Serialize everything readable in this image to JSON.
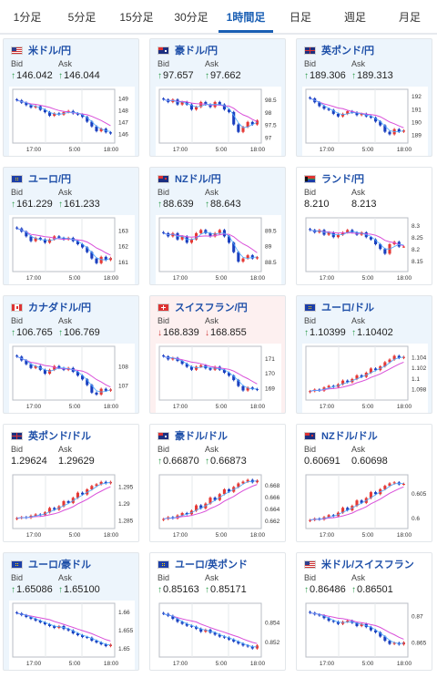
{
  "tabs": [
    {
      "label": "1分足",
      "active": false
    },
    {
      "label": "5分足",
      "active": false
    },
    {
      "label": "15分足",
      "active": false
    },
    {
      "label": "30分足",
      "active": false
    },
    {
      "label": "1時間足",
      "active": true
    },
    {
      "label": "日足",
      "active": false
    },
    {
      "label": "週足",
      "active": false
    },
    {
      "label": "月足",
      "active": false
    }
  ],
  "labels": {
    "bid": "Bid",
    "ask": "Ask"
  },
  "x_ticks": [
    "17:00",
    "5:00",
    "18:00"
  ],
  "colors": {
    "up": "#2b9c4a",
    "down": "#d03a3a",
    "candle_up": "#e53935",
    "candle_down": "#1a3fbf",
    "ma_long": "#d94fd9",
    "ma_short": "#4aa8ff"
  },
  "cards": [
    {
      "pair": "米ドル/円",
      "flag": "us",
      "bid": "146.042",
      "ask": "146.044",
      "dir": "up",
      "tint": "blue",
      "ticks": [
        "149",
        "148",
        "147",
        "146"
      ],
      "chart_data": {
        "type": "candlestick",
        "ylim": [
          145.5,
          149.5
        ],
        "trend": "down",
        "closes": [
          148.8,
          148.6,
          148.4,
          148.2,
          148.3,
          148.0,
          147.8,
          147.5,
          147.7,
          147.6,
          147.8,
          147.9,
          147.7,
          147.6,
          147.4,
          147.0,
          146.6,
          146.2,
          146.4,
          146.1,
          146.0
        ]
      }
    },
    {
      "pair": "豪ドル/円",
      "flag": "au",
      "bid": "97.657",
      "ask": "97.662",
      "dir": "up",
      "tint": "blue",
      "ticks": [
        "98.5",
        "98",
        "97.5",
        "97"
      ],
      "chart_data": {
        "type": "candlestick",
        "ylim": [
          96.9,
          98.8
        ],
        "trend": "down",
        "closes": [
          98.5,
          98.4,
          98.5,
          98.3,
          98.4,
          98.3,
          98.1,
          98.2,
          98.4,
          98.3,
          98.2,
          98.4,
          98.3,
          98.1,
          98.0,
          97.5,
          97.2,
          97.4,
          97.6,
          97.5,
          97.66
        ]
      }
    },
    {
      "pair": "英ポンド/円",
      "flag": "gb",
      "bid": "189.306",
      "ask": "189.313",
      "dir": "up",
      "tint": "blue",
      "ticks": [
        "192",
        "191",
        "190",
        "189"
      ],
      "chart_data": {
        "type": "candlestick",
        "ylim": [
          188.6,
          192.3
        ],
        "trend": "down",
        "closes": [
          191.8,
          191.5,
          191.2,
          191.0,
          190.9,
          190.6,
          190.4,
          190.6,
          190.8,
          190.7,
          190.5,
          190.6,
          190.4,
          190.3,
          190.0,
          189.7,
          189.2,
          189.0,
          189.4,
          189.2,
          189.3
        ]
      }
    },
    {
      "pair": "ユーロ/円",
      "flag": "eu",
      "bid": "161.229",
      "ask": "161.233",
      "dir": "up",
      "tint": "blue",
      "ticks": [
        "163",
        "162",
        "161"
      ],
      "chart_data": {
        "type": "candlestick",
        "ylim": [
          160.6,
          163.6
        ],
        "trend": "down",
        "closes": [
          163.1,
          162.9,
          162.6,
          162.3,
          162.5,
          162.4,
          162.2,
          162.4,
          162.6,
          162.5,
          162.4,
          162.5,
          162.3,
          162.1,
          161.9,
          161.6,
          161.2,
          160.9,
          161.3,
          161.1,
          161.23
        ]
      }
    },
    {
      "pair": "NZドル/円",
      "flag": "nz",
      "bid": "88.639",
      "ask": "88.643",
      "dir": "up",
      "tint": "blue",
      "ticks": [
        "89.5",
        "89",
        "88.5"
      ],
      "chart_data": {
        "type": "candlestick",
        "ylim": [
          88.3,
          89.8
        ],
        "trend": "down",
        "closes": [
          89.4,
          89.3,
          89.4,
          89.2,
          89.3,
          89.1,
          89.2,
          89.4,
          89.5,
          89.4,
          89.3,
          89.4,
          89.5,
          89.3,
          89.1,
          88.8,
          88.5,
          88.6,
          88.7,
          88.6,
          88.64
        ]
      }
    },
    {
      "pair": "ランド/円",
      "flag": "za",
      "bid": "8.210",
      "ask": "8.213",
      "dir": "none",
      "tint": "none",
      "ticks": [
        "8.3",
        "8.25",
        "8.2",
        "8.15"
      ],
      "chart_data": {
        "type": "candlestick",
        "ylim": [
          8.12,
          8.32
        ],
        "trend": "flat",
        "closes": [
          8.28,
          8.27,
          8.28,
          8.26,
          8.27,
          8.25,
          8.26,
          8.27,
          8.28,
          8.27,
          8.26,
          8.27,
          8.25,
          8.24,
          8.22,
          8.2,
          8.18,
          8.22,
          8.23,
          8.21,
          8.21
        ]
      }
    },
    {
      "pair": "カナダドル/円",
      "flag": "ca",
      "bid": "106.765",
      "ask": "106.769",
      "dir": "up",
      "tint": "blue",
      "ticks": [
        "108",
        "107"
      ],
      "chart_data": {
        "type": "candlestick",
        "ylim": [
          106.4,
          108.9
        ],
        "trend": "down",
        "closes": [
          108.5,
          108.3,
          108.1,
          107.9,
          108.0,
          107.8,
          107.6,
          107.8,
          108.0,
          107.9,
          107.8,
          107.9,
          107.7,
          107.5,
          107.3,
          107.0,
          106.6,
          106.5,
          106.8,
          106.7,
          106.77
        ]
      }
    },
    {
      "pair": "スイスフラン/円",
      "flag": "ch",
      "bid": "168.839",
      "ask": "168.855",
      "dir": "down",
      "tint": "red",
      "ticks": [
        "171",
        "170",
        "169"
      ],
      "chart_data": {
        "type": "candlestick",
        "ylim": [
          168.4,
          171.6
        ],
        "trend": "down",
        "closes": [
          171.1,
          170.9,
          171.0,
          170.8,
          170.6,
          170.4,
          170.2,
          170.4,
          170.5,
          170.3,
          170.2,
          170.4,
          170.2,
          170.0,
          169.8,
          169.5,
          169.1,
          168.8,
          169.0,
          168.9,
          168.84
        ]
      }
    },
    {
      "pair": "ユーロ/ドル",
      "flag": "eu-us",
      "bid": "1.10399",
      "ask": "1.10402",
      "dir": "up",
      "tint": "blue",
      "ticks": [
        "1.104",
        "1.102",
        "1.1",
        "1.098"
      ],
      "chart_data": {
        "type": "candlestick",
        "ylim": [
          1.0965,
          1.1055
        ],
        "trend": "up",
        "closes": [
          1.0975,
          1.0978,
          1.0976,
          1.0982,
          1.0985,
          1.0983,
          1.0988,
          1.0995,
          1.0992,
          1.0998,
          1.1005,
          1.1002,
          1.101,
          1.1018,
          1.1015,
          1.1022,
          1.103,
          1.1035,
          1.1042,
          1.1038,
          1.104
        ]
      }
    },
    {
      "pair": "英ポンド/ドル",
      "flag": "gb-us",
      "bid": "1.29624",
      "ask": "1.29629",
      "dir": "none",
      "tint": "none",
      "ticks": [
        "1.295",
        "1.29",
        "1.285"
      ],
      "chart_data": {
        "type": "candlestick",
        "ylim": [
          1.2835,
          1.2975
        ],
        "trend": "up",
        "closes": [
          1.2855,
          1.2858,
          1.2856,
          1.2862,
          1.2866,
          1.2864,
          1.2872,
          1.2885,
          1.288,
          1.289,
          1.2905,
          1.29,
          1.2915,
          1.293,
          1.2925,
          1.294,
          1.295,
          1.2955,
          1.2962,
          1.2958,
          1.2962
        ]
      }
    },
    {
      "pair": "豪ドル/ドル",
      "flag": "au-us",
      "bid": "0.66870",
      "ask": "0.66873",
      "dir": "up",
      "tint": "none",
      "ticks": [
        "0.668",
        "0.666",
        "0.664",
        "0.662"
      ],
      "chart_data": {
        "type": "candlestick",
        "ylim": [
          0.6612,
          0.6692
        ],
        "trend": "up",
        "closes": [
          0.6622,
          0.6625,
          0.6623,
          0.6628,
          0.6632,
          0.663,
          0.6636,
          0.6645,
          0.664,
          0.6648,
          0.6658,
          0.6654,
          0.6664,
          0.6672,
          0.6668,
          0.6676,
          0.6682,
          0.6685,
          0.6688,
          0.6684,
          0.6687
        ]
      }
    },
    {
      "pair": "NZドル/ドル",
      "flag": "nz-us",
      "bid": "0.60691",
      "ask": "0.60698",
      "dir": "none",
      "tint": "none",
      "ticks": [
        "0.605",
        "0.6"
      ],
      "chart_data": {
        "type": "candlestick",
        "ylim": [
          0.5985,
          0.6082
        ],
        "trend": "up",
        "closes": [
          0.5995,
          0.5998,
          0.5996,
          0.6001,
          0.6005,
          0.6003,
          0.601,
          0.602,
          0.6015,
          0.6024,
          0.6035,
          0.603,
          0.604,
          0.6052,
          0.6048,
          0.6058,
          0.6065,
          0.607,
          0.6072,
          0.6068,
          0.6069
        ]
      }
    },
    {
      "pair": "ユーロ/豪ドル",
      "flag": "eu-au",
      "bid": "1.65086",
      "ask": "1.65100",
      "dir": "up",
      "tint": "blue",
      "ticks": [
        "1.66",
        "1.655",
        "1.65"
      ],
      "chart_data": {
        "type": "candlestick",
        "ylim": [
          1.6485,
          1.6615
        ],
        "trend": "down",
        "closes": [
          1.6595,
          1.659,
          1.6585,
          1.658,
          1.6575,
          1.657,
          1.6565,
          1.656,
          1.6555,
          1.656,
          1.6552,
          1.6548,
          1.654,
          1.6535,
          1.653,
          1.6528,
          1.652,
          1.6515,
          1.651,
          1.6505,
          1.6509
        ]
      }
    },
    {
      "pair": "ユーロ/英ポンド",
      "flag": "eu-gb",
      "bid": "0.85163",
      "ask": "0.85171",
      "dir": "up",
      "tint": "none",
      "ticks": [
        "0.854",
        "0.852"
      ],
      "chart_data": {
        "type": "candlestick",
        "ylim": [
          0.8508,
          0.8556
        ],
        "trend": "down",
        "closes": [
          0.8548,
          0.8546,
          0.8543,
          0.854,
          0.8538,
          0.8536,
          0.8535,
          0.8533,
          0.853,
          0.8532,
          0.8529,
          0.8527,
          0.8525,
          0.8524,
          0.8522,
          0.852,
          0.8518,
          0.8516,
          0.8515,
          0.8513,
          0.8516
        ]
      }
    },
    {
      "pair": "米ドル/スイスフラン",
      "flag": "us-ch",
      "bid": "0.86486",
      "ask": "0.86501",
      "dir": "up",
      "tint": "none",
      "ticks": [
        "0.87",
        "0.865"
      ],
      "chart_data": {
        "type": "candlestick",
        "ylim": [
          0.8628,
          0.8718
        ],
        "trend": "down",
        "closes": [
          0.8705,
          0.8702,
          0.87,
          0.8695,
          0.869,
          0.8688,
          0.8684,
          0.8688,
          0.869,
          0.8686,
          0.868,
          0.8684,
          0.8678,
          0.8672,
          0.8668,
          0.866,
          0.8652,
          0.8646,
          0.8648,
          0.8645,
          0.8649
        ]
      }
    }
  ]
}
